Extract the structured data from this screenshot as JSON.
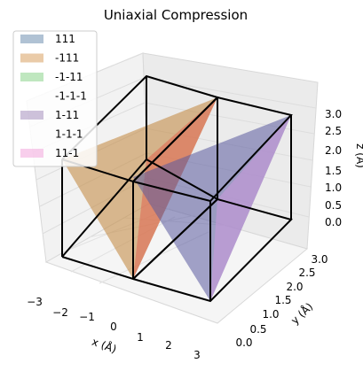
{
  "chart_data": {
    "type": "3d-surface",
    "title": "Uniaxial Compression",
    "xlabel": "x (Å)",
    "ylabel": "y (Å)",
    "zlabel": "z (Å)",
    "xlim": [
      -3,
      3
    ],
    "ylim": [
      0,
      3
    ],
    "zlim": [
      0,
      3
    ],
    "x_ticks": [
      "−3",
      "−2",
      "−1",
      "0",
      "1",
      "2",
      "3"
    ],
    "y_ticks": [
      "0.0",
      "0.5",
      "1.0",
      "1.5",
      "2.0",
      "2.5",
      "3.0"
    ],
    "z_ticks": [
      "0.0",
      "0.5",
      "1.0",
      "1.5",
      "2.0",
      "2.5",
      "3.0"
    ],
    "grid": true,
    "legend_position": "upper left",
    "cells": [
      {
        "x": [
          -3,
          0
        ],
        "y": [
          0,
          3
        ],
        "z": [
          0,
          3
        ]
      },
      {
        "x": [
          0,
          3
        ],
        "y": [
          0,
          3
        ],
        "z": [
          0,
          3
        ]
      }
    ],
    "series": [
      {
        "name": "111",
        "color": "#6f8fb0",
        "opacity": 0.55
      },
      {
        "name": "-111",
        "color": "#d9a060",
        "opacity": 0.55
      },
      {
        "name": "-1-11",
        "color": "#7fcf7f",
        "opacity": 0.5
      },
      {
        "name": "-1-1-1",
        "color": "#ffffff",
        "opacity": 0.0
      },
      {
        "name": "1-11",
        "color": "#a58fbd",
        "opacity": 0.55
      },
      {
        "name": "1-1-1",
        "color": "#ffffff",
        "opacity": 0.0
      },
      {
        "name": "11-1",
        "color": "#f3a6dc",
        "opacity": 0.55
      }
    ],
    "planes": [
      {
        "color": "#b27a35",
        "alpha": 0.55,
        "vertices": [
          [
            -3,
            0,
            3
          ],
          [
            0,
            3,
            3
          ],
          [
            0,
            0,
            0
          ]
        ]
      },
      {
        "color": "#d96a4d",
        "alpha": 0.55,
        "vertices": [
          [
            0,
            0,
            0
          ],
          [
            0,
            3,
            3
          ],
          [
            -1,
            1.5,
            1.7
          ]
        ]
      },
      {
        "color": "#4d4d91",
        "alpha": 0.55,
        "vertices": [
          [
            -1,
            0,
            2.4
          ],
          [
            0,
            3,
            3
          ],
          [
            3,
            0,
            0
          ]
        ]
      },
      {
        "color": "#b88ed0",
        "alpha": 0.55,
        "vertices": [
          [
            0,
            0,
            3
          ],
          [
            3,
            3,
            3
          ],
          [
            3,
            0,
            0
          ]
        ]
      }
    ]
  }
}
